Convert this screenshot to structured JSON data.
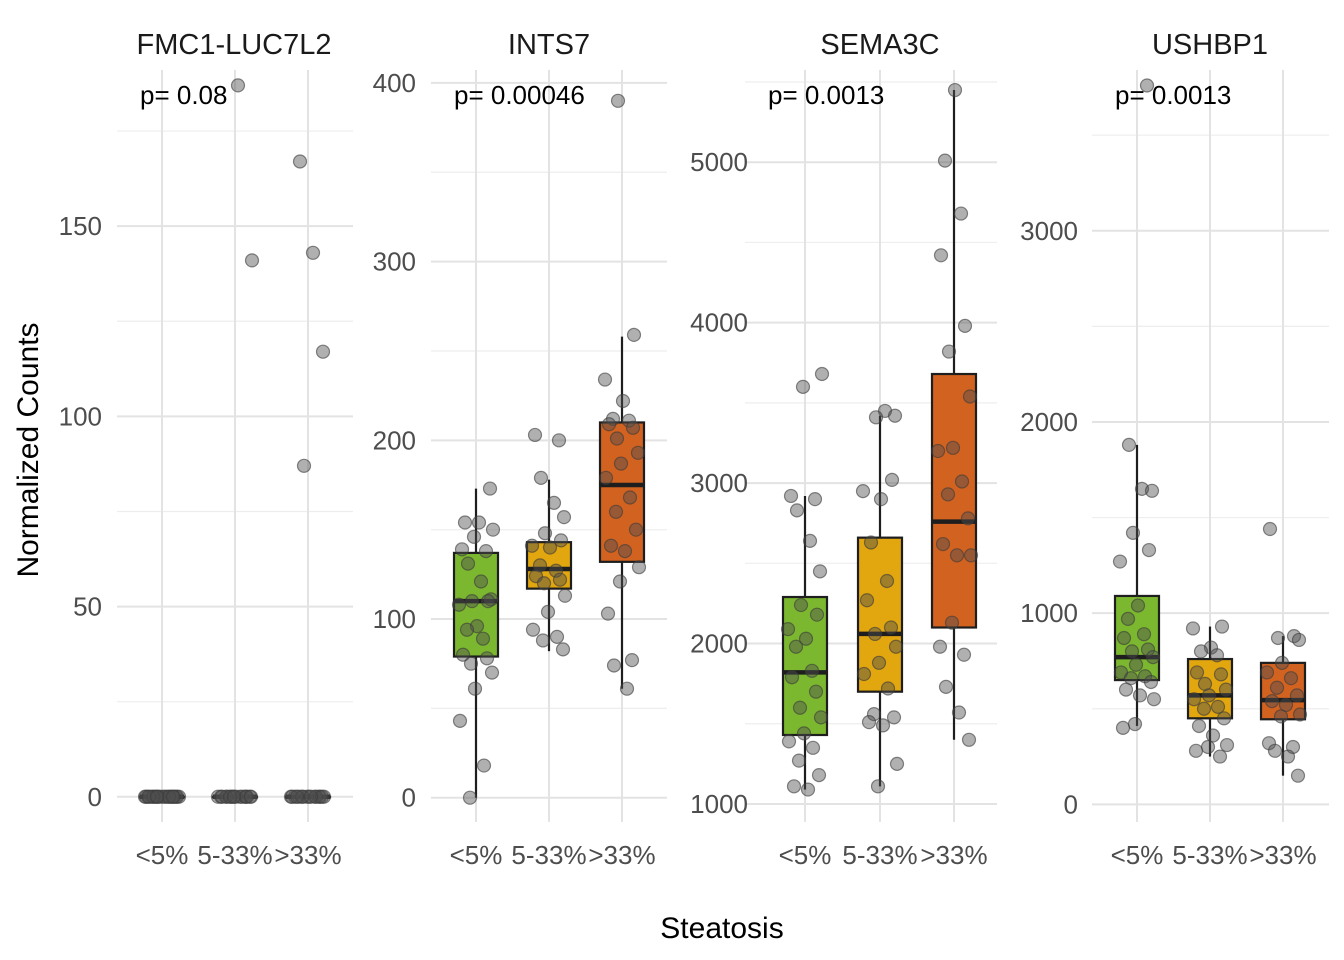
{
  "chart_data": {
    "type": "box",
    "xlabel": "Steatosis",
    "ylabel": "Normalized Counts",
    "categories": [
      "<5%",
      "5-33%",
      ">33%"
    ],
    "colors": {
      "<5%": "#7CB82F",
      "5-33%": "#E2A60E",
      ">33%": "#D2621F"
    },
    "point_color": "#4d4d4d",
    "grid": true,
    "panels": [
      {
        "title": "FMC1-LUC7L2",
        "pvalue": "p= 0.08",
        "ylim": [
          -4,
          190
        ],
        "yticks": [
          0,
          50,
          100,
          150
        ],
        "boxes": [
          {
            "category": "<5%",
            "q1": 0,
            "median": 0,
            "q3": 0,
            "lower": 0,
            "upper": 0
          },
          {
            "category": "5-33%",
            "q1": 0,
            "median": 0,
            "q3": 0,
            "lower": 0,
            "upper": 0
          },
          {
            "category": ">33%",
            "q1": 0,
            "median": 0,
            "q3": 0,
            "lower": 0,
            "upper": 0
          }
        ],
        "points": {
          "<5%": [
            0,
            0,
            0,
            0,
            0,
            0,
            0,
            0,
            0,
            0,
            0,
            0,
            0,
            0,
            0,
            0,
            0,
            0,
            0,
            0,
            0,
            0
          ],
          "5-33%": [
            187,
            141,
            0,
            0,
            0,
            0,
            0,
            0,
            0,
            0,
            0,
            0,
            0,
            0,
            0,
            0,
            0,
            0,
            0
          ],
          ">33%": [
            167,
            143,
            117,
            87,
            0,
            0,
            0,
            0,
            0,
            0,
            0,
            0,
            0,
            0,
            0,
            0,
            0,
            0,
            0,
            0
          ]
        }
      },
      {
        "title": "INTS7",
        "pvalue": "p= 0.00046",
        "ylim": [
          -8,
          405
        ],
        "yticks": [
          0,
          100,
          200,
          300,
          400
        ],
        "boxes": [
          {
            "category": "<5%",
            "q1": 79,
            "median": 110,
            "q3": 137,
            "lower": 0,
            "upper": 173
          },
          {
            "category": "5-33%",
            "q1": 117,
            "median": 128,
            "q3": 143,
            "lower": 82,
            "upper": 178
          },
          {
            "category": ">33%",
            "q1": 132,
            "median": 175,
            "q3": 210,
            "lower": 61,
            "upper": 258
          }
        ],
        "points": {
          "<5%": [
            173,
            154,
            154,
            150,
            146,
            139,
            138,
            131,
            121,
            111,
            110,
            110,
            108,
            96,
            94,
            89,
            80,
            78,
            75,
            70,
            61,
            43,
            18,
            0
          ],
          "5-33%": [
            203,
            200,
            179,
            165,
            157,
            148,
            144,
            141,
            140,
            130,
            127,
            124,
            122,
            120,
            113,
            104,
            94,
            90,
            88,
            83
          ],
          "> 33%": [],
          ">33%": [
            390,
            259,
            234,
            222,
            212,
            211,
            209,
            207,
            201,
            193,
            187,
            179,
            168,
            160,
            150,
            141,
            138,
            129,
            121,
            103,
            77,
            74,
            61
          ]
        }
      },
      {
        "title": "SEMA3C",
        "pvalue": "p= 0.0013",
        "ylim": [
          950,
          5550
        ],
        "yticks": [
          1000,
          2000,
          3000,
          4000,
          5000
        ],
        "boxes": [
          {
            "category": "<5%",
            "q1": 1430,
            "median": 1820,
            "q3": 2290,
            "lower": 1090,
            "upper": 2920
          },
          {
            "category": "5-33%",
            "q1": 1700,
            "median": 2060,
            "q3": 2660,
            "lower": 1110,
            "upper": 3420
          },
          {
            "category": ">33%",
            "q1": 2100,
            "median": 2760,
            "q3": 3680,
            "lower": 1400,
            "upper": 5450
          }
        ],
        "points": {
          "<5%": [
            3680,
            3600,
            2920,
            2900,
            2830,
            2640,
            2450,
            2240,
            2180,
            2090,
            2030,
            1980,
            1830,
            1790,
            1700,
            1600,
            1540,
            1440,
            1390,
            1350,
            1270,
            1180,
            1110,
            1090
          ],
          "5-33%": [
            3450,
            3420,
            3410,
            3020,
            2950,
            2900,
            2630,
            2390,
            2270,
            2100,
            2060,
            1980,
            1880,
            1810,
            1720,
            1560,
            1540,
            1510,
            1490,
            1250,
            1110
          ],
          ">33%": [
            5450,
            5010,
            4680,
            4420,
            3980,
            3820,
            3540,
            3220,
            3200,
            3010,
            2930,
            2780,
            2620,
            2550,
            2550,
            2130,
            1980,
            1930,
            1730,
            1570,
            1400
          ]
        }
      },
      {
        "title": "USHBP1",
        "pvalue": "p= 0.0013",
        "ylim": [
          -40,
          3820
        ],
        "yticks": [
          0,
          1000,
          2000,
          3000
        ],
        "boxes": [
          {
            "category": "<5%",
            "q1": 650,
            "median": 770,
            "q3": 1090,
            "lower": 410,
            "upper": 1880
          },
          {
            "category": "5-33%",
            "q1": 450,
            "median": 570,
            "q3": 760,
            "lower": 250,
            "upper": 930
          },
          {
            "category": ">33%",
            "q1": 445,
            "median": 545,
            "q3": 740,
            "lower": 150,
            "upper": 880
          }
        ],
        "points": {
          "<5%": [
            3760,
            1880,
            1650,
            1640,
            1420,
            1330,
            1270,
            1040,
            970,
            890,
            870,
            810,
            800,
            770,
            730,
            690,
            670,
            660,
            640,
            600,
            570,
            550,
            420,
            400
          ],
          "5-33%": [
            930,
            920,
            820,
            800,
            780,
            690,
            680,
            630,
            600,
            570,
            550,
            510,
            500,
            450,
            410,
            360,
            310,
            300,
            280,
            250
          ],
          ">33%": [
            1440,
            880,
            870,
            860,
            740,
            690,
            660,
            610,
            570,
            540,
            520,
            470,
            460,
            320,
            300,
            280,
            250,
            150
          ]
        }
      }
    ]
  }
}
